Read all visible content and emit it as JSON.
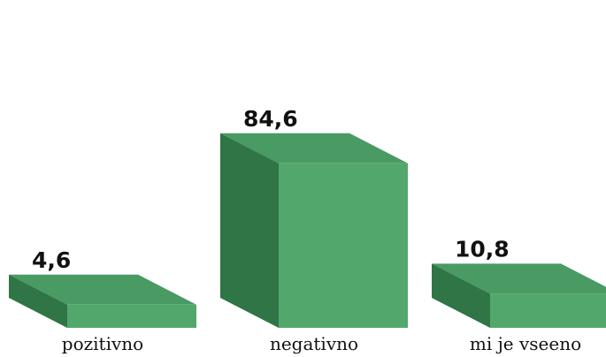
{
  "chart_data": {
    "type": "bar",
    "categories": [
      "pozitivno",
      "negativno",
      "mi je vseeno"
    ],
    "values": [
      4.6,
      84.6,
      10.8
    ],
    "value_labels": [
      "4,6",
      "84,6",
      "10,8"
    ],
    "title": "",
    "xlabel": "",
    "ylabel": "",
    "ylim": [
      0,
      100
    ],
    "grid": false,
    "legend": "none",
    "style": "3d"
  },
  "colors": {
    "front": "#52a86c",
    "top": "#4a9a63",
    "side": "#2f7545"
  }
}
